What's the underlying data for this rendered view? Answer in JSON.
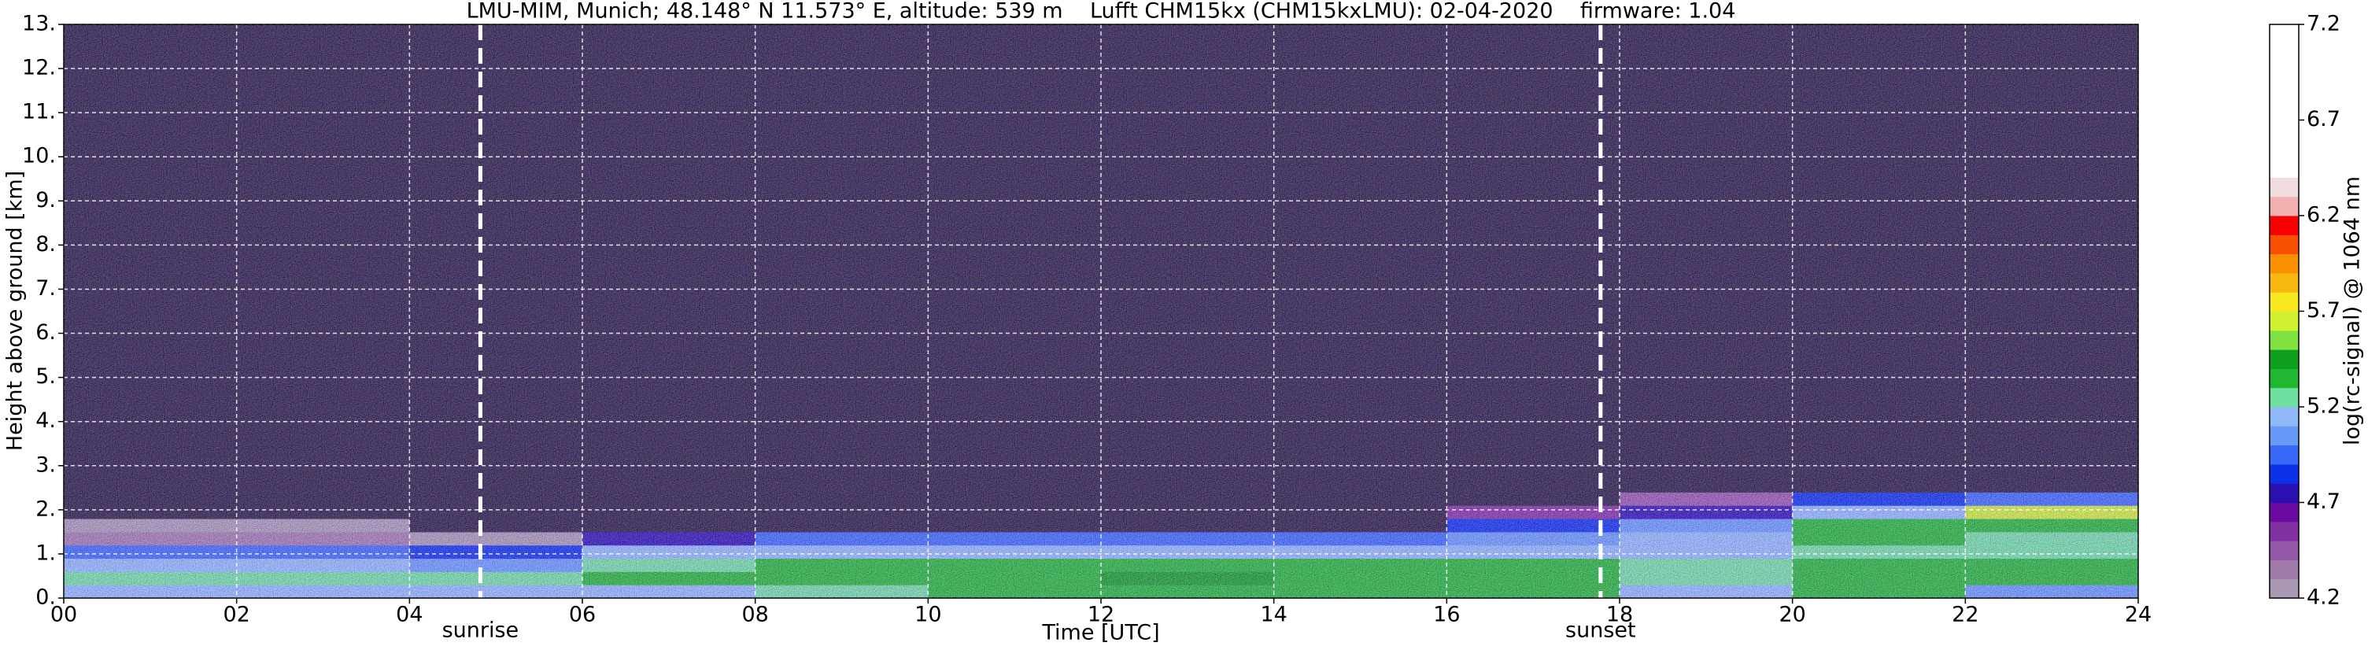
{
  "chart_data": {
    "type": "heatmap",
    "title": "LMU-MIM, Munich; 48.148° N 11.573° E, altitude: 539 m    Lufft CHM15kx (CHM15kxLMU): 02-04-2020    firmware: 1.04",
    "xlabel": "Time [UTC]",
    "ylabel": "Height above ground [km]",
    "zlabel": "log(rc-signal) @ 1064 nm",
    "xlim": [
      0,
      24
    ],
    "ylim": [
      0,
      13
    ],
    "zlim": [
      4.2,
      7.2
    ],
    "xticks": [
      {
        "value": 0,
        "label": "00"
      },
      {
        "value": 2,
        "label": "02"
      },
      {
        "value": 4,
        "label": "04"
      },
      {
        "value": 6,
        "label": "06"
      },
      {
        "value": 8,
        "label": "08"
      },
      10,
      12,
      14,
      16,
      18,
      20,
      22,
      24
    ],
    "yticks": [
      {
        "value": 0,
        "label": "0."
      },
      {
        "value": 1,
        "label": "1."
      },
      {
        "value": 2,
        "label": "2."
      },
      {
        "value": 3,
        "label": "3."
      },
      {
        "value": 4,
        "label": "4."
      },
      {
        "value": 5,
        "label": "5."
      },
      {
        "value": 6,
        "label": "6."
      },
      {
        "value": 7,
        "label": "7."
      },
      {
        "value": 8,
        "label": "8."
      },
      {
        "value": 9,
        "label": "9."
      },
      {
        "value": 10,
        "label": "10."
      },
      {
        "value": 11,
        "label": "11."
      },
      {
        "value": 12,
        "label": "12."
      },
      {
        "value": 13,
        "label": "13."
      }
    ],
    "zticks": [
      4.2,
      4.7,
      5.2,
      5.7,
      6.2,
      6.7,
      7.2
    ],
    "grid": true,
    "xbins": [
      0,
      2,
      4,
      6,
      8,
      10,
      12,
      14,
      16,
      18,
      20,
      22,
      24
    ],
    "ybins": [
      0,
      0.3,
      0.6,
      0.9,
      1.2,
      1.5,
      1.8,
      2.1,
      2.4,
      3.5,
      13
    ],
    "z": [
      [
        5.1,
        5.1,
        5.1,
        5.1,
        5.25,
        5.3,
        5.3,
        5.3,
        5.3,
        5.1,
        5.3,
        5.0
      ],
      [
        5.2,
        5.2,
        5.2,
        5.3,
        5.3,
        5.3,
        5.4,
        5.3,
        5.3,
        5.2,
        5.3,
        5.3
      ],
      [
        5.1,
        5.1,
        5.0,
        5.2,
        5.3,
        5.3,
        5.3,
        5.3,
        5.3,
        5.2,
        5.3,
        5.3
      ],
      [
        4.9,
        4.9,
        4.8,
        5.1,
        5.1,
        5.1,
        5.1,
        5.1,
        5.1,
        5.1,
        5.2,
        5.2
      ],
      [
        4.3,
        4.3,
        4.2,
        4.7,
        4.9,
        4.9,
        4.9,
        4.9,
        5.0,
        5.1,
        5.3,
        5.2
      ],
      [
        4.2,
        4.2,
        4.0,
        4.0,
        4.0,
        4.1,
        4.1,
        4.1,
        4.8,
        5.0,
        5.3,
        5.3
      ],
      [
        4.1,
        4.1,
        4.0,
        4.0,
        4.0,
        4.0,
        4.0,
        4.0,
        4.5,
        4.7,
        5.1,
        5.6
      ],
      [
        4.1,
        4.1,
        4.0,
        4.0,
        4.0,
        4.0,
        4.0,
        4.0,
        4.0,
        4.4,
        4.8,
        4.9
      ],
      [
        4.05,
        4.05,
        4.0,
        4.0,
        4.0,
        4.0,
        4.0,
        4.0,
        4.0,
        4.0,
        4.0,
        4.0
      ],
      [
        4.0,
        4.0,
        4.0,
        4.0,
        4.0,
        4.0,
        4.0,
        4.0,
        4.0,
        4.0,
        4.0,
        4.0
      ]
    ],
    "colors": [
      "#a898b0",
      "#a07aa8",
      "#9458a8",
      "#8030a0",
      "#6a0aa0",
      "#2a10b0",
      "#0a30e8",
      "#3868f8",
      "#6898f8",
      "#90b8f8",
      "#70e0a0",
      "#20b830",
      "#10a020",
      "#80e040",
      "#d0f030",
      "#f8e820",
      "#f8b810",
      "#f89000",
      "#f85000",
      "#f80000",
      "#f0b0b0",
      "#f0dcdc",
      "#ffffff",
      "#ffffff",
      "#ffffff",
      "#ffffff",
      "#ffffff",
      "#ffffff",
      "#ffffff",
      "#ffffff"
    ],
    "under_color": "#261a3c",
    "annotations": [
      {
        "x": 4.82,
        "label": "sunrise"
      },
      {
        "x": 17.78,
        "label": "sunset"
      }
    ]
  }
}
